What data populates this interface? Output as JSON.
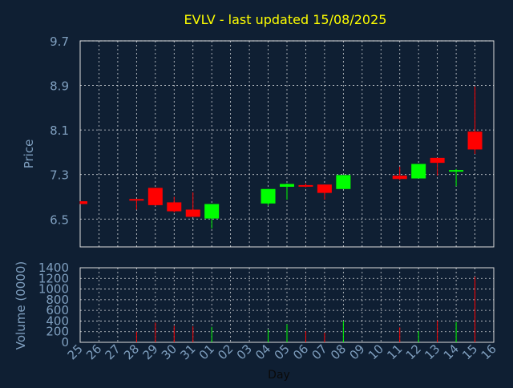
{
  "chart_data": {
    "type": "candlestick",
    "title": "EVLV - last updated 15/08/2025",
    "xlabel": "Day",
    "categories": [
      "25",
      "26",
      "27",
      "28",
      "29",
      "30",
      "31",
      "01",
      "02",
      "03",
      "04",
      "05",
      "06",
      "07",
      "08",
      "09",
      "10",
      "11",
      "12",
      "13",
      "14",
      "15",
      "16"
    ],
    "price": {
      "ylabel": "Price",
      "ylim": [
        6.0,
        9.7
      ],
      "ticks": [
        "6.5",
        "7.3",
        "8.1",
        "8.9",
        "9.7"
      ],
      "candles": [
        {
          "day": "25",
          "open": 6.82,
          "high": 6.82,
          "low": 6.77,
          "close": 6.77
        },
        {
          "day": "28",
          "open": 6.86,
          "high": 6.86,
          "low": 6.67,
          "close": 6.85
        },
        {
          "day": "29",
          "open": 7.06,
          "high": 7.06,
          "low": 6.74,
          "close": 6.75
        },
        {
          "day": "30",
          "open": 6.8,
          "high": 6.9,
          "low": 6.62,
          "close": 6.64
        },
        {
          "day": "31",
          "open": 6.67,
          "high": 6.98,
          "low": 6.55,
          "close": 6.54
        },
        {
          "day": "01",
          "open": 6.51,
          "high": 6.77,
          "low": 6.33,
          "close": 6.77
        },
        {
          "day": "04",
          "open": 6.78,
          "high": 7.04,
          "low": 6.74,
          "close": 7.04
        },
        {
          "day": "05",
          "open": 7.08,
          "high": 7.14,
          "low": 6.85,
          "close": 7.13
        },
        {
          "day": "06",
          "open": 7.11,
          "high": 7.14,
          "low": 7.07,
          "close": 7.1
        },
        {
          "day": "07",
          "open": 7.12,
          "high": 7.12,
          "low": 6.85,
          "close": 6.97
        },
        {
          "day": "08",
          "open": 7.04,
          "high": 7.29,
          "low": 7.04,
          "close": 7.29
        },
        {
          "day": "11",
          "open": 7.28,
          "high": 7.44,
          "low": 7.2,
          "close": 7.22
        },
        {
          "day": "12",
          "open": 7.23,
          "high": 7.49,
          "low": 7.23,
          "close": 7.49
        },
        {
          "day": "13",
          "open": 7.6,
          "high": 7.6,
          "low": 7.28,
          "close": 7.51
        },
        {
          "day": "14",
          "open": 7.36,
          "high": 7.4,
          "low": 7.09,
          "close": 7.38
        },
        {
          "day": "15",
          "open": 8.07,
          "high": 8.88,
          "low": 7.67,
          "close": 7.75
        }
      ]
    },
    "volume": {
      "ylabel": "Volume (0000)",
      "ylim": [
        0,
        1400
      ],
      "ticks": [
        "0",
        "200",
        "400",
        "600",
        "800",
        "1000",
        "1200",
        "1400"
      ],
      "bars": [
        {
          "day": "25",
          "value": 0,
          "dir": "down"
        },
        {
          "day": "28",
          "value": 200,
          "dir": "down"
        },
        {
          "day": "29",
          "value": 370,
          "dir": "down"
        },
        {
          "day": "30",
          "value": 310,
          "dir": "down"
        },
        {
          "day": "31",
          "value": 300,
          "dir": "down"
        },
        {
          "day": "01",
          "value": 290,
          "dir": "up"
        },
        {
          "day": "04",
          "value": 240,
          "dir": "up"
        },
        {
          "day": "05",
          "value": 340,
          "dir": "up"
        },
        {
          "day": "06",
          "value": 210,
          "dir": "down"
        },
        {
          "day": "07",
          "value": 180,
          "dir": "down"
        },
        {
          "day": "08",
          "value": 400,
          "dir": "up"
        },
        {
          "day": "11",
          "value": 280,
          "dir": "down"
        },
        {
          "day": "12",
          "value": 210,
          "dir": "up"
        },
        {
          "day": "13",
          "value": 410,
          "dir": "down"
        },
        {
          "day": "14",
          "value": 380,
          "dir": "up"
        },
        {
          "day": "15",
          "value": 1230,
          "dir": "down"
        }
      ]
    },
    "grid": true,
    "colors": {
      "background": "#0f1f33",
      "up": "#00ff00",
      "down": "#ff0000",
      "title": "#ffff00",
      "axis_text": "#7f9fbf",
      "grid": "#ffffff",
      "frame": "#dddddd"
    }
  }
}
